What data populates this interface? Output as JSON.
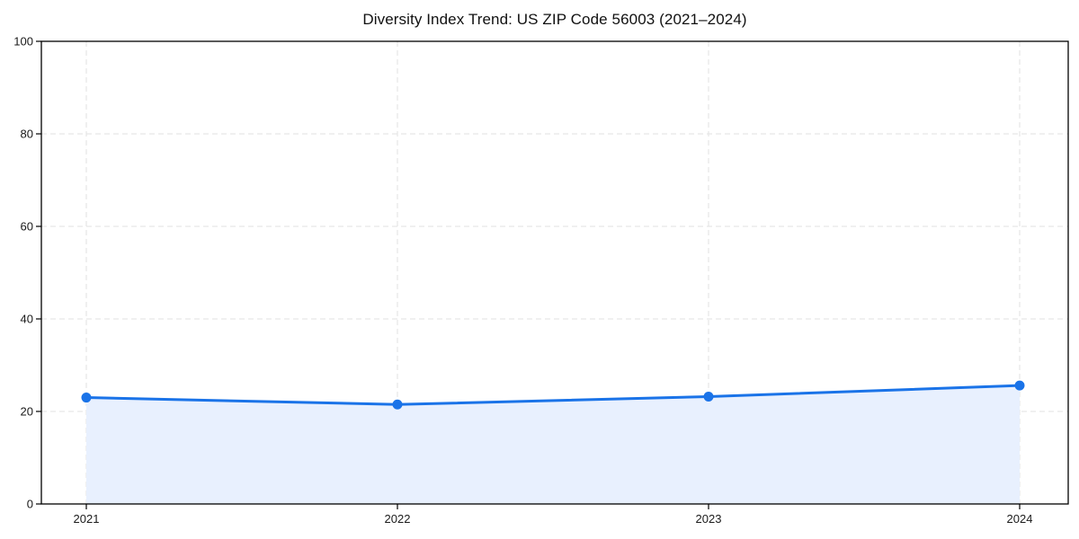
{
  "chart_data": {
    "type": "area",
    "title": "Diversity Index Trend: US ZIP Code 56003 (2021–2024)",
    "categories": [
      "2021",
      "2022",
      "2023",
      "2024"
    ],
    "values": [
      23.0,
      21.5,
      23.2,
      25.6
    ],
    "series_name": "Diversity Index",
    "xlabel": "",
    "ylabel": "",
    "ylim": [
      0,
      100
    ],
    "yticks": [
      0,
      20,
      40,
      60,
      80,
      100
    ],
    "grid": true,
    "grid_style": "dashed",
    "legend": "none",
    "marker": "circle",
    "colors": {
      "line": "#1a73e8",
      "marker": "#1a73e8",
      "fill": "#e8f0fe",
      "grid": "#e2e2e2",
      "axis": "#000000",
      "tick_text": "#1a1a1a",
      "title_text": "#111111",
      "background": "#ffffff"
    }
  }
}
